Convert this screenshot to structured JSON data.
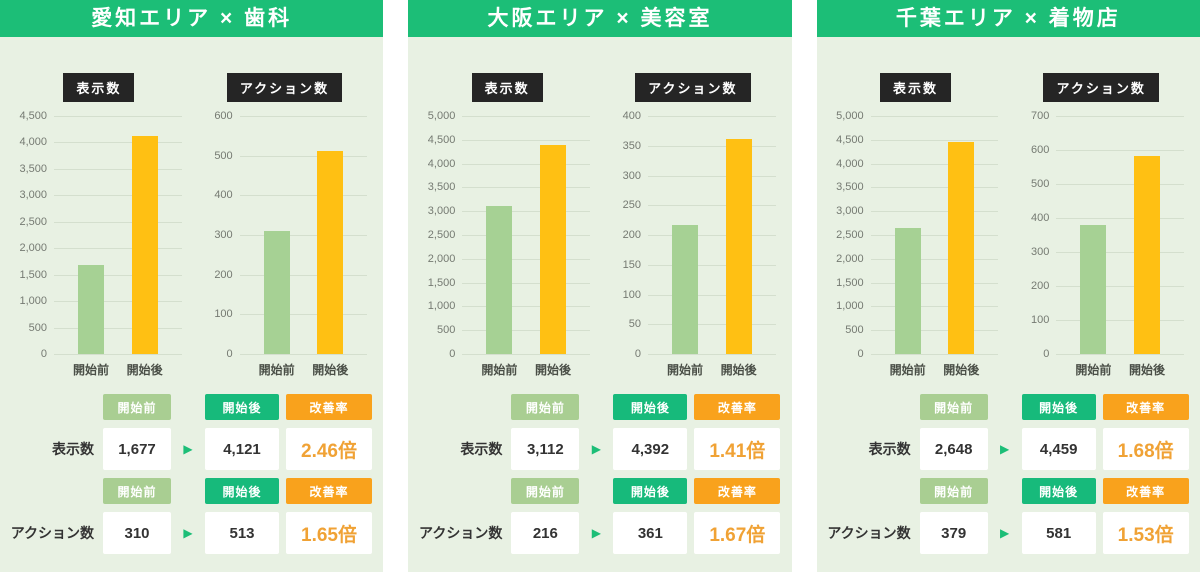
{
  "table_headers": {
    "before": "開始前",
    "after": "開始後",
    "rate": "改善率"
  },
  "colors": {
    "header_green": "#1cbe77",
    "panel_bg": "#e8f1e3",
    "chart_badge_bg": "#252525",
    "bar_before": "#a6d194",
    "bar_after": "#ffc013",
    "badge_before_bg": "#a9ce92",
    "badge_after_bg": "#17ba7b",
    "badge_rate_bg": "#f9a21c",
    "rate_text": "#f0a235",
    "arrow": "#1cbe77"
  },
  "panels": [
    {
      "title": "愛知エリア × 歯科",
      "charts": [
        {
          "badge": "表示数",
          "ymax": 4500,
          "ticks": [
            "4,500",
            "4,000",
            "3,500",
            "3,000",
            "2,500",
            "2,000",
            "1,500",
            "1,000",
            "500",
            "0"
          ],
          "categories": [
            "開始前",
            "開始後"
          ],
          "values": [
            1677,
            4121
          ]
        },
        {
          "badge": "アクション数",
          "ymax": 600,
          "ticks": [
            "600",
            "500",
            "400",
            "300",
            "200",
            "100",
            "0"
          ],
          "categories": [
            "開始前",
            "開始後"
          ],
          "values": [
            310,
            513
          ]
        }
      ],
      "table": {
        "rows": [
          {
            "label": "表示数",
            "before": "1,677",
            "after": "4,121",
            "rate": "2.46倍"
          },
          {
            "label": "アクション数",
            "before": "310",
            "after": "513",
            "rate": "1.65倍"
          }
        ]
      }
    },
    {
      "title": "大阪エリア × 美容室",
      "charts": [
        {
          "badge": "表示数",
          "ymax": 5000,
          "ticks": [
            "5,000",
            "4,500",
            "4,000",
            "3,500",
            "3,000",
            "2,500",
            "2,000",
            "1,500",
            "1,000",
            "500",
            "0"
          ],
          "categories": [
            "開始前",
            "開始後"
          ],
          "values": [
            3112,
            4392
          ]
        },
        {
          "badge": "アクション数",
          "ymax": 400,
          "ticks": [
            "400",
            "350",
            "300",
            "250",
            "200",
            "150",
            "100",
            "50",
            "0"
          ],
          "categories": [
            "開始前",
            "開始後"
          ],
          "values": [
            216,
            361
          ]
        }
      ],
      "table": {
        "rows": [
          {
            "label": "表示数",
            "before": "3,112",
            "after": "4,392",
            "rate": "1.41倍"
          },
          {
            "label": "アクション数",
            "before": "216",
            "after": "361",
            "rate": "1.67倍"
          }
        ]
      }
    },
    {
      "title": "千葉エリア × 着物店",
      "charts": [
        {
          "badge": "表示数",
          "ymax": 5000,
          "ticks": [
            "5,000",
            "4,500",
            "4,000",
            "3,500",
            "3,000",
            "2,500",
            "2,000",
            "1,500",
            "1,000",
            "500",
            "0"
          ],
          "categories": [
            "開始前",
            "開始後"
          ],
          "values": [
            2648,
            4459
          ]
        },
        {
          "badge": "アクション数",
          "ymax": 700,
          "ticks": [
            "700",
            "600",
            "500",
            "400",
            "300",
            "200",
            "100",
            "0"
          ],
          "categories": [
            "開始前",
            "開始後"
          ],
          "values": [
            379,
            581
          ]
        }
      ],
      "table": {
        "rows": [
          {
            "label": "表示数",
            "before": "2,648",
            "after": "4,459",
            "rate": "1.68倍"
          },
          {
            "label": "アクション数",
            "before": "379",
            "after": "581",
            "rate": "1.53倍"
          }
        ]
      }
    }
  ],
  "chart_data": [
    {
      "type": "bar",
      "title": "愛知エリア × 歯科 表示数",
      "categories": [
        "開始前",
        "開始後"
      ],
      "values": [
        1677,
        4121
      ],
      "ylim": [
        0,
        4500
      ],
      "ytick_step": 500,
      "grid": true,
      "bar_colors": [
        "#a6d194",
        "#ffc013"
      ],
      "improvement": "2.46倍"
    },
    {
      "type": "bar",
      "title": "愛知エリア × 歯科 アクション数",
      "categories": [
        "開始前",
        "開始後"
      ],
      "values": [
        310,
        513
      ],
      "ylim": [
        0,
        600
      ],
      "ytick_step": 100,
      "grid": true,
      "bar_colors": [
        "#a6d194",
        "#ffc013"
      ],
      "improvement": "1.65倍"
    },
    {
      "type": "bar",
      "title": "大阪エリア × 美容室 表示数",
      "categories": [
        "開始前",
        "開始後"
      ],
      "values": [
        3112,
        4392
      ],
      "ylim": [
        0,
        5000
      ],
      "ytick_step": 500,
      "grid": true,
      "bar_colors": [
        "#a6d194",
        "#ffc013"
      ],
      "improvement": "1.41倍"
    },
    {
      "type": "bar",
      "title": "大阪エリア × 美容室 アクション数",
      "categories": [
        "開始前",
        "開始後"
      ],
      "values": [
        216,
        361
      ],
      "ylim": [
        0,
        400
      ],
      "ytick_step": 50,
      "grid": true,
      "bar_colors": [
        "#a6d194",
        "#ffc013"
      ],
      "improvement": "1.67倍"
    },
    {
      "type": "bar",
      "title": "千葉エリア × 着物店 表示数",
      "categories": [
        "開始前",
        "開始後"
      ],
      "values": [
        2648,
        4459
      ],
      "ylim": [
        0,
        5000
      ],
      "ytick_step": 500,
      "grid": true,
      "bar_colors": [
        "#a6d194",
        "#ffc013"
      ],
      "improvement": "1.68倍"
    },
    {
      "type": "bar",
      "title": "千葉エリア × 着物店 アクション数",
      "categories": [
        "開始前",
        "開始後"
      ],
      "values": [
        379,
        581
      ],
      "ylim": [
        0,
        700
      ],
      "ytick_step": 100,
      "grid": true,
      "bar_colors": [
        "#a6d194",
        "#ffc013"
      ],
      "improvement": "1.53倍"
    }
  ]
}
